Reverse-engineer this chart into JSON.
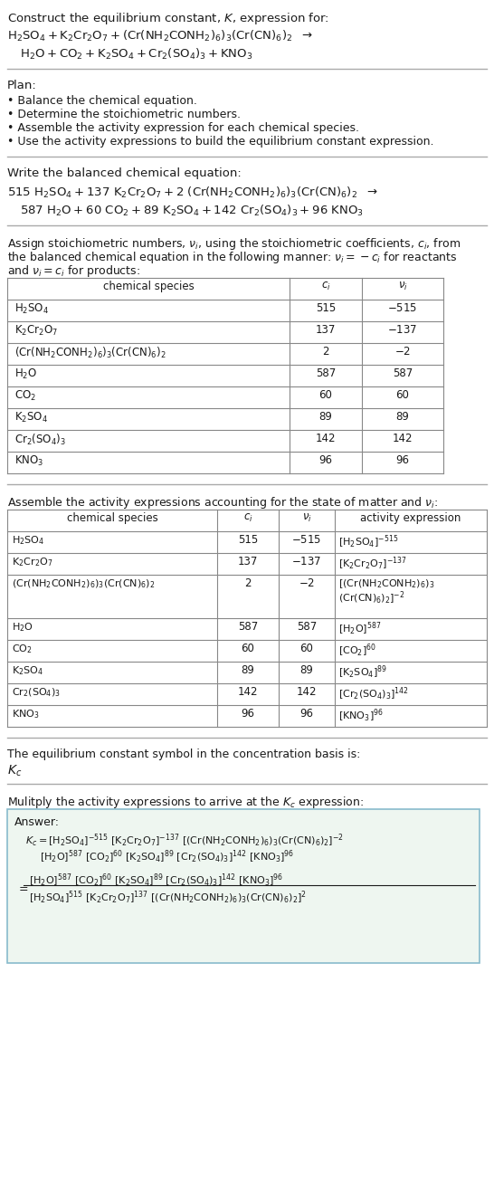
{
  "bg_color": "#ffffff",
  "text_color": "#1a1a1a",
  "fig_width": 5.46,
  "fig_height": 13.17,
  "dpi": 100
}
